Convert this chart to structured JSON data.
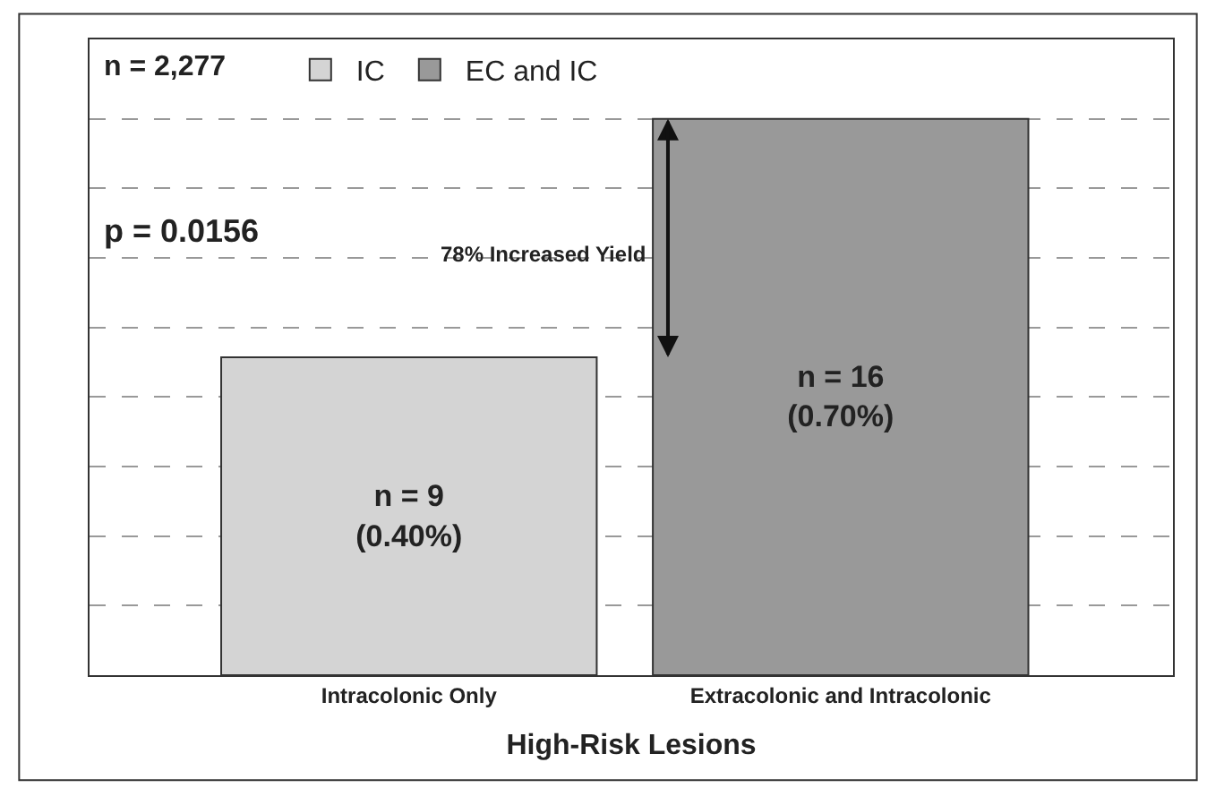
{
  "chart_data": {
    "type": "bar",
    "xlabel": "High-Risk Lesions",
    "categories": [
      "Intracolonic Only",
      "Extracolonic and Intracolonic"
    ],
    "series": [
      {
        "name": "IC",
        "color": "#d4d4d4",
        "values": [
          0.4,
          null
        ],
        "value_labels": [
          "n = 9\n(0.40%)",
          null
        ]
      },
      {
        "name": "EC and IC",
        "color": "#999999",
        "values": [
          null,
          0.7
        ],
        "value_labels": [
          null,
          "n = 16\n(0.70%)"
        ]
      }
    ],
    "ylim": [
      0,
      0.8
    ],
    "yticks": [
      {
        "value": 0,
        "label": null
      },
      {
        "value": 0.0875,
        "label": null
      },
      {
        "value": 0.175,
        "label": null
      },
      {
        "value": 0.2625,
        "label": null
      },
      {
        "value": 0.35,
        "label": null
      },
      {
        "value": 0.4375,
        "label": null
      },
      {
        "value": 0.525,
        "label": null
      },
      {
        "value": 0.6125,
        "label": null
      },
      {
        "value": 0.7,
        "label": null
      }
    ],
    "tick_labels": "x",
    "grid": "y",
    "legend": "top left",
    "annotations": [
      "n = 2,277",
      "p = 0.0156",
      "78% Increased Yield"
    ]
  }
}
